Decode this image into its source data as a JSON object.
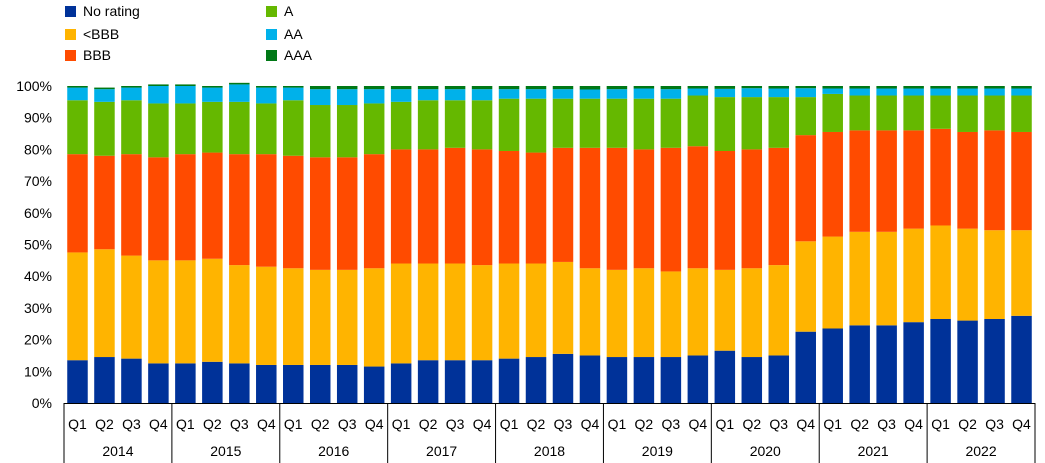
{
  "chart_data": {
    "type": "bar",
    "stacked": true,
    "percent": true,
    "title": "",
    "xlabel": "",
    "ylabel": "",
    "ylim": [
      0,
      100
    ],
    "yticks": [
      "0%",
      "10%",
      "20%",
      "30%",
      "40%",
      "50%",
      "60%",
      "70%",
      "80%",
      "90%",
      "100%"
    ],
    "grid": false,
    "legend_position": "top-left",
    "years": [
      "2014",
      "2015",
      "2016",
      "2017",
      "2018",
      "2019",
      "2020",
      "2021",
      "2022"
    ],
    "quarters": [
      "Q1",
      "Q2",
      "Q3",
      "Q4"
    ],
    "categories": [
      "2014 Q1",
      "2014 Q2",
      "2014 Q3",
      "2014 Q4",
      "2015 Q1",
      "2015 Q2",
      "2015 Q3",
      "2015 Q4",
      "2016 Q1",
      "2016 Q2",
      "2016 Q3",
      "2016 Q4",
      "2017 Q1",
      "2017 Q2",
      "2017 Q3",
      "2017 Q4",
      "2018 Q1",
      "2018 Q2",
      "2018 Q3",
      "2018 Q4",
      "2019 Q1",
      "2019 Q2",
      "2019 Q3",
      "2019 Q4",
      "2020 Q1",
      "2020 Q2",
      "2020 Q3",
      "2020 Q4",
      "2021 Q1",
      "2021 Q2",
      "2021 Q3",
      "2021 Q4",
      "2022 Q1",
      "2022 Q2",
      "2022 Q3",
      "2022 Q4"
    ],
    "series": [
      {
        "name": "No rating",
        "color": "#003299",
        "values": [
          13.5,
          14.5,
          14,
          12.5,
          12.5,
          13,
          12.5,
          12,
          12,
          12,
          12,
          11.5,
          12.5,
          13.5,
          13.5,
          13.5,
          14,
          14.5,
          15.5,
          15,
          14.5,
          14.5,
          14.5,
          15,
          16.5,
          14.5,
          15,
          22.5,
          23.5,
          24.5,
          24.5,
          25.5,
          26.5,
          26,
          26.5,
          27.5
        ]
      },
      {
        "name": "<BBB",
        "color": "#FFB400",
        "values": [
          34,
          34,
          32.5,
          32.5,
          32.5,
          32.5,
          31,
          31,
          30.5,
          30,
          30,
          31,
          31.5,
          30.5,
          30.5,
          30,
          30,
          29.5,
          29,
          27.5,
          27.5,
          28,
          27,
          27.5,
          25.5,
          28,
          28.5,
          28.5,
          29,
          29.5,
          29.5,
          29.5,
          29.5,
          29,
          28,
          27
        ]
      },
      {
        "name": "BBB",
        "color": "#FF4B00",
        "values": [
          31,
          29.5,
          32,
          32.5,
          33.5,
          33.5,
          35,
          35.5,
          35.5,
          35.5,
          35.5,
          36,
          36,
          36,
          36.5,
          36.5,
          35.5,
          35,
          36,
          38,
          38.5,
          37.5,
          39,
          38.5,
          37.5,
          37.5,
          37,
          33.5,
          33,
          32,
          32,
          31,
          30.5,
          30.5,
          31.5,
          31
        ]
      },
      {
        "name": "A",
        "color": "#65B800",
        "values": [
          17,
          17,
          17,
          17,
          16,
          16,
          16.5,
          16,
          17.5,
          16.5,
          16.5,
          16,
          15,
          15.5,
          15,
          15.5,
          16.5,
          17,
          15.5,
          15.5,
          15.5,
          16,
          15.5,
          16,
          17,
          16.5,
          16,
          12,
          12,
          11,
          11,
          11,
          10.5,
          11.5,
          11,
          11.5
        ]
      },
      {
        "name": "AA",
        "color": "#00B1EA",
        "values": [
          4,
          4,
          4,
          5.5,
          5.5,
          4.5,
          5.5,
          5,
          4,
          5,
          5,
          4.5,
          4,
          3.5,
          3.5,
          3.5,
          3,
          3,
          3,
          2.9,
          3,
          3.2,
          3,
          2.2,
          2.6,
          2.8,
          2.7,
          2.8,
          1.7,
          2.2,
          2.2,
          2.2,
          2.2,
          2.2,
          2.2,
          2.2
        ]
      },
      {
        "name": "AAA",
        "color": "#007816",
        "values": [
          0.5,
          0.5,
          0.5,
          0.5,
          0.5,
          0.5,
          0.5,
          0.5,
          0.5,
          1,
          1,
          1,
          1,
          1,
          1,
          1,
          1,
          1,
          1,
          1.1,
          1,
          0.8,
          1,
          0.8,
          0.9,
          0.7,
          0.8,
          0.7,
          0.8,
          0.8,
          0.8,
          0.8,
          0.8,
          0.8,
          0.8,
          0.8
        ]
      }
    ]
  },
  "legend": {
    "items": [
      {
        "label": "No rating",
        "color": "#003299"
      },
      {
        "label": "<BBB",
        "color": "#FFB400"
      },
      {
        "label": "BBB",
        "color": "#FF4B00"
      },
      {
        "label": "A",
        "color": "#65B800"
      },
      {
        "label": "AA",
        "color": "#00B1EA"
      },
      {
        "label": "AAA",
        "color": "#007816"
      }
    ]
  }
}
